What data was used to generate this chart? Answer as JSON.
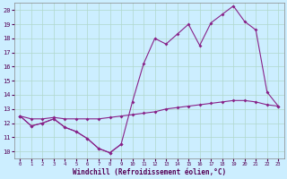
{
  "xlabel": "Windchill (Refroidissement éolien,°C)",
  "background_color": "#cceeff",
  "grid_color": "#b0d8cc",
  "line_color": "#882288",
  "xlim": [
    -0.5,
    23.5
  ],
  "ylim": [
    9.5,
    20.5
  ],
  "xticks": [
    0,
    1,
    2,
    3,
    4,
    5,
    6,
    7,
    8,
    9,
    10,
    11,
    12,
    13,
    14,
    15,
    16,
    17,
    18,
    19,
    20,
    21,
    22,
    23
  ],
  "yticks": [
    10,
    11,
    12,
    13,
    14,
    15,
    16,
    17,
    18,
    19,
    20
  ],
  "line1_x": [
    0,
    1,
    2,
    3,
    4,
    5,
    6,
    7,
    8,
    9
  ],
  "line1_y": [
    12.5,
    11.8,
    12.0,
    12.3,
    11.7,
    11.4,
    10.9,
    10.2,
    9.9,
    10.5
  ],
  "line2_x": [
    0,
    1,
    2,
    3,
    4,
    5,
    6,
    7,
    8,
    9,
    10,
    11,
    12,
    13,
    14,
    15,
    16,
    17,
    18,
    19,
    20,
    21,
    22,
    23
  ],
  "line2_y": [
    12.5,
    12.3,
    12.3,
    12.4,
    12.3,
    12.3,
    12.3,
    12.3,
    12.4,
    12.5,
    12.6,
    12.7,
    12.8,
    13.0,
    13.1,
    13.2,
    13.3,
    13.4,
    13.5,
    13.6,
    13.6,
    13.5,
    13.3,
    13.2
  ],
  "line3_x": [
    0,
    1,
    2,
    3,
    4,
    5,
    6,
    7,
    8,
    9,
    10,
    11,
    12,
    13,
    14,
    15,
    16,
    17,
    18,
    19,
    20,
    21,
    22,
    23
  ],
  "line3_y": [
    12.5,
    11.8,
    12.0,
    12.3,
    11.7,
    11.4,
    10.9,
    10.2,
    9.9,
    10.5,
    13.5,
    16.2,
    18.0,
    17.6,
    18.3,
    19.0,
    17.5,
    19.1,
    19.7,
    20.3,
    19.2,
    18.6,
    14.2,
    13.2
  ],
  "markersize": 2.0,
  "linewidth": 0.8
}
